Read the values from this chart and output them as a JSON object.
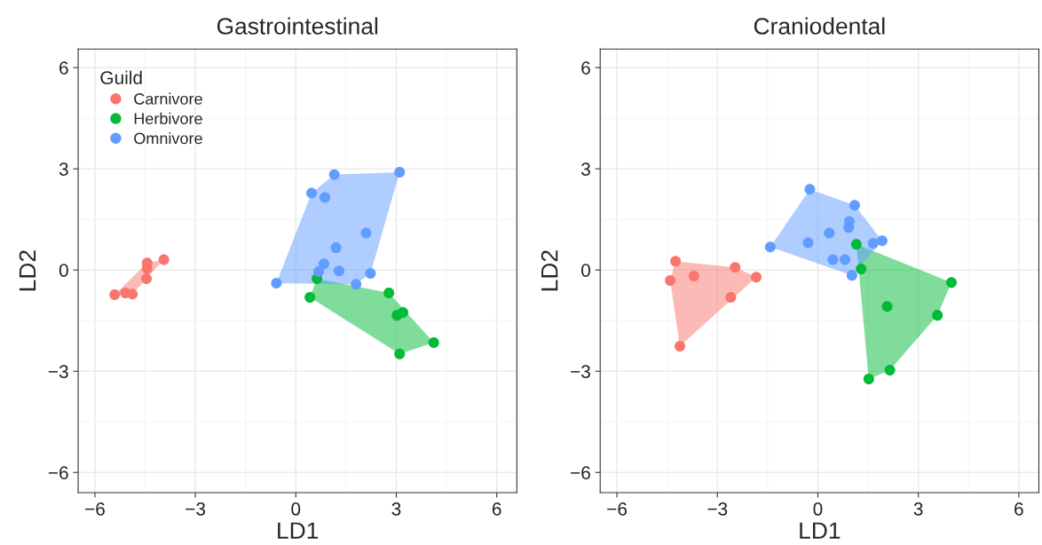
{
  "chart_data": [
    {
      "type": "scatter",
      "title": "Gastrointestinal",
      "xlabel": "LD1",
      "ylabel": "LD2",
      "legend_title": "Guild",
      "legend": "top left",
      "grid": true,
      "marker": "circle",
      "xlim": [
        -6.5,
        6.6
      ],
      "ylim": [
        -6.6,
        6.55
      ],
      "xticks": [
        -6,
        -3,
        0,
        3,
        6
      ],
      "yticks": [
        -6,
        -3,
        0,
        3,
        6
      ],
      "series": [
        {
          "name": "Carnivore",
          "color": "#f8766d",
          "x": [
            -3.94,
            -4.44,
            -4.44,
            -4.46,
            -5.41,
            -5.09,
            -4.88
          ],
          "values": [
            0.31,
            0.21,
            0.05,
            -0.26,
            -0.73,
            -0.68,
            -0.71
          ]
        },
        {
          "name": "Herbivore",
          "color": "#00ba38",
          "x": [
            0.63,
            0.42,
            2.78,
            3.02,
            3.2,
            4.12,
            3.1
          ],
          "values": [
            -0.26,
            -0.81,
            -0.68,
            -1.34,
            -1.26,
            -2.15,
            -2.49
          ]
        },
        {
          "name": "Omnivore",
          "color": "#619cff",
          "x": [
            3.1,
            1.15,
            0.47,
            0.87,
            2.1,
            1.2,
            0.84,
            0.68,
            1.29,
            2.23,
            1.8,
            -0.58
          ],
          "values": [
            2.9,
            2.83,
            2.28,
            2.15,
            1.1,
            0.66,
            0.18,
            -0.05,
            -0.03,
            -0.1,
            -0.42,
            -0.39
          ]
        }
      ]
    },
    {
      "type": "scatter",
      "title": "Craniodental",
      "xlabel": "LD1",
      "ylabel": "LD2",
      "grid": true,
      "marker": "circle",
      "xlim": [
        -6.5,
        6.6
      ],
      "ylim": [
        -6.6,
        6.55
      ],
      "xticks": [
        -6,
        -3,
        0,
        3,
        6
      ],
      "yticks": [
        -6,
        -3,
        0,
        3,
        6
      ],
      "series": [
        {
          "color": "#f8766d",
          "x": [
            -4.25,
            -4.41,
            -3.7,
            -2.47,
            -1.84,
            -2.6,
            -4.12
          ],
          "values": [
            0.26,
            -0.31,
            -0.18,
            0.08,
            -0.21,
            -0.81,
            -2.26
          ]
        },
        {
          "color": "#00ba38",
          "x": [
            1.15,
            1.29,
            3.99,
            2.07,
            3.57,
            2.15,
            1.52
          ],
          "values": [
            0.76,
            0.03,
            -0.37,
            -1.08,
            -1.34,
            -2.97,
            -3.23
          ]
        },
        {
          "color": "#619cff",
          "x": [
            -0.24,
            1.1,
            0.94,
            0.92,
            0.34,
            -0.29,
            -1.42,
            1.65,
            1.92,
            0.45,
            0.81,
            1.02
          ],
          "values": [
            2.39,
            1.92,
            1.44,
            1.26,
            1.1,
            0.81,
            0.68,
            0.79,
            0.87,
            0.31,
            0.31,
            -0.16
          ]
        }
      ]
    }
  ]
}
